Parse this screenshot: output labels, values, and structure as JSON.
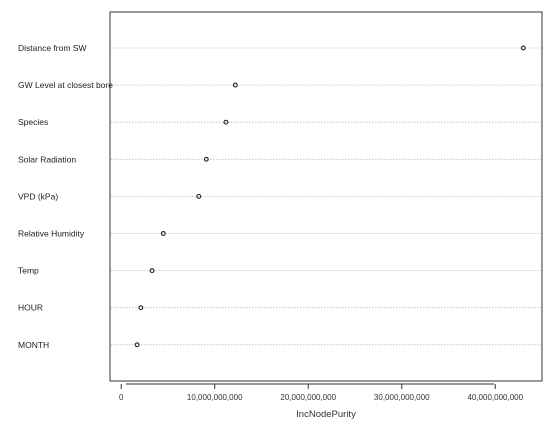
{
  "chart_data": {
    "type": "scatter",
    "subtype": "dotchart",
    "title": "",
    "xlabel": "IncNodePurity",
    "ylabel": "",
    "xlim": [
      -1200000000,
      45000000000
    ],
    "xticks": [
      0,
      10000000000,
      20000000000,
      30000000000,
      40000000000
    ],
    "xtick_labels": [
      "0",
      "10,000,000,000",
      "20,000,000,000",
      "30,000,000,000",
      "40,000,000,000"
    ],
    "categories": [
      "Distance from SW",
      "GW Level at closest bore",
      "Species",
      "Solar Radiation",
      "VPD (kPa)",
      "Relative Humidity",
      "Temp",
      "HOUR",
      "MONTH"
    ],
    "values": [
      43000000000,
      12200000000,
      11200000000,
      9100000000,
      8300000000,
      4500000000,
      3300000000,
      2100000000,
      1700000000
    ],
    "grid": "dotted-horizontal",
    "legend": "none"
  },
  "colors": {
    "point_stroke": "#222222",
    "grid": "#bbbbbb",
    "frame": "#333333"
  }
}
